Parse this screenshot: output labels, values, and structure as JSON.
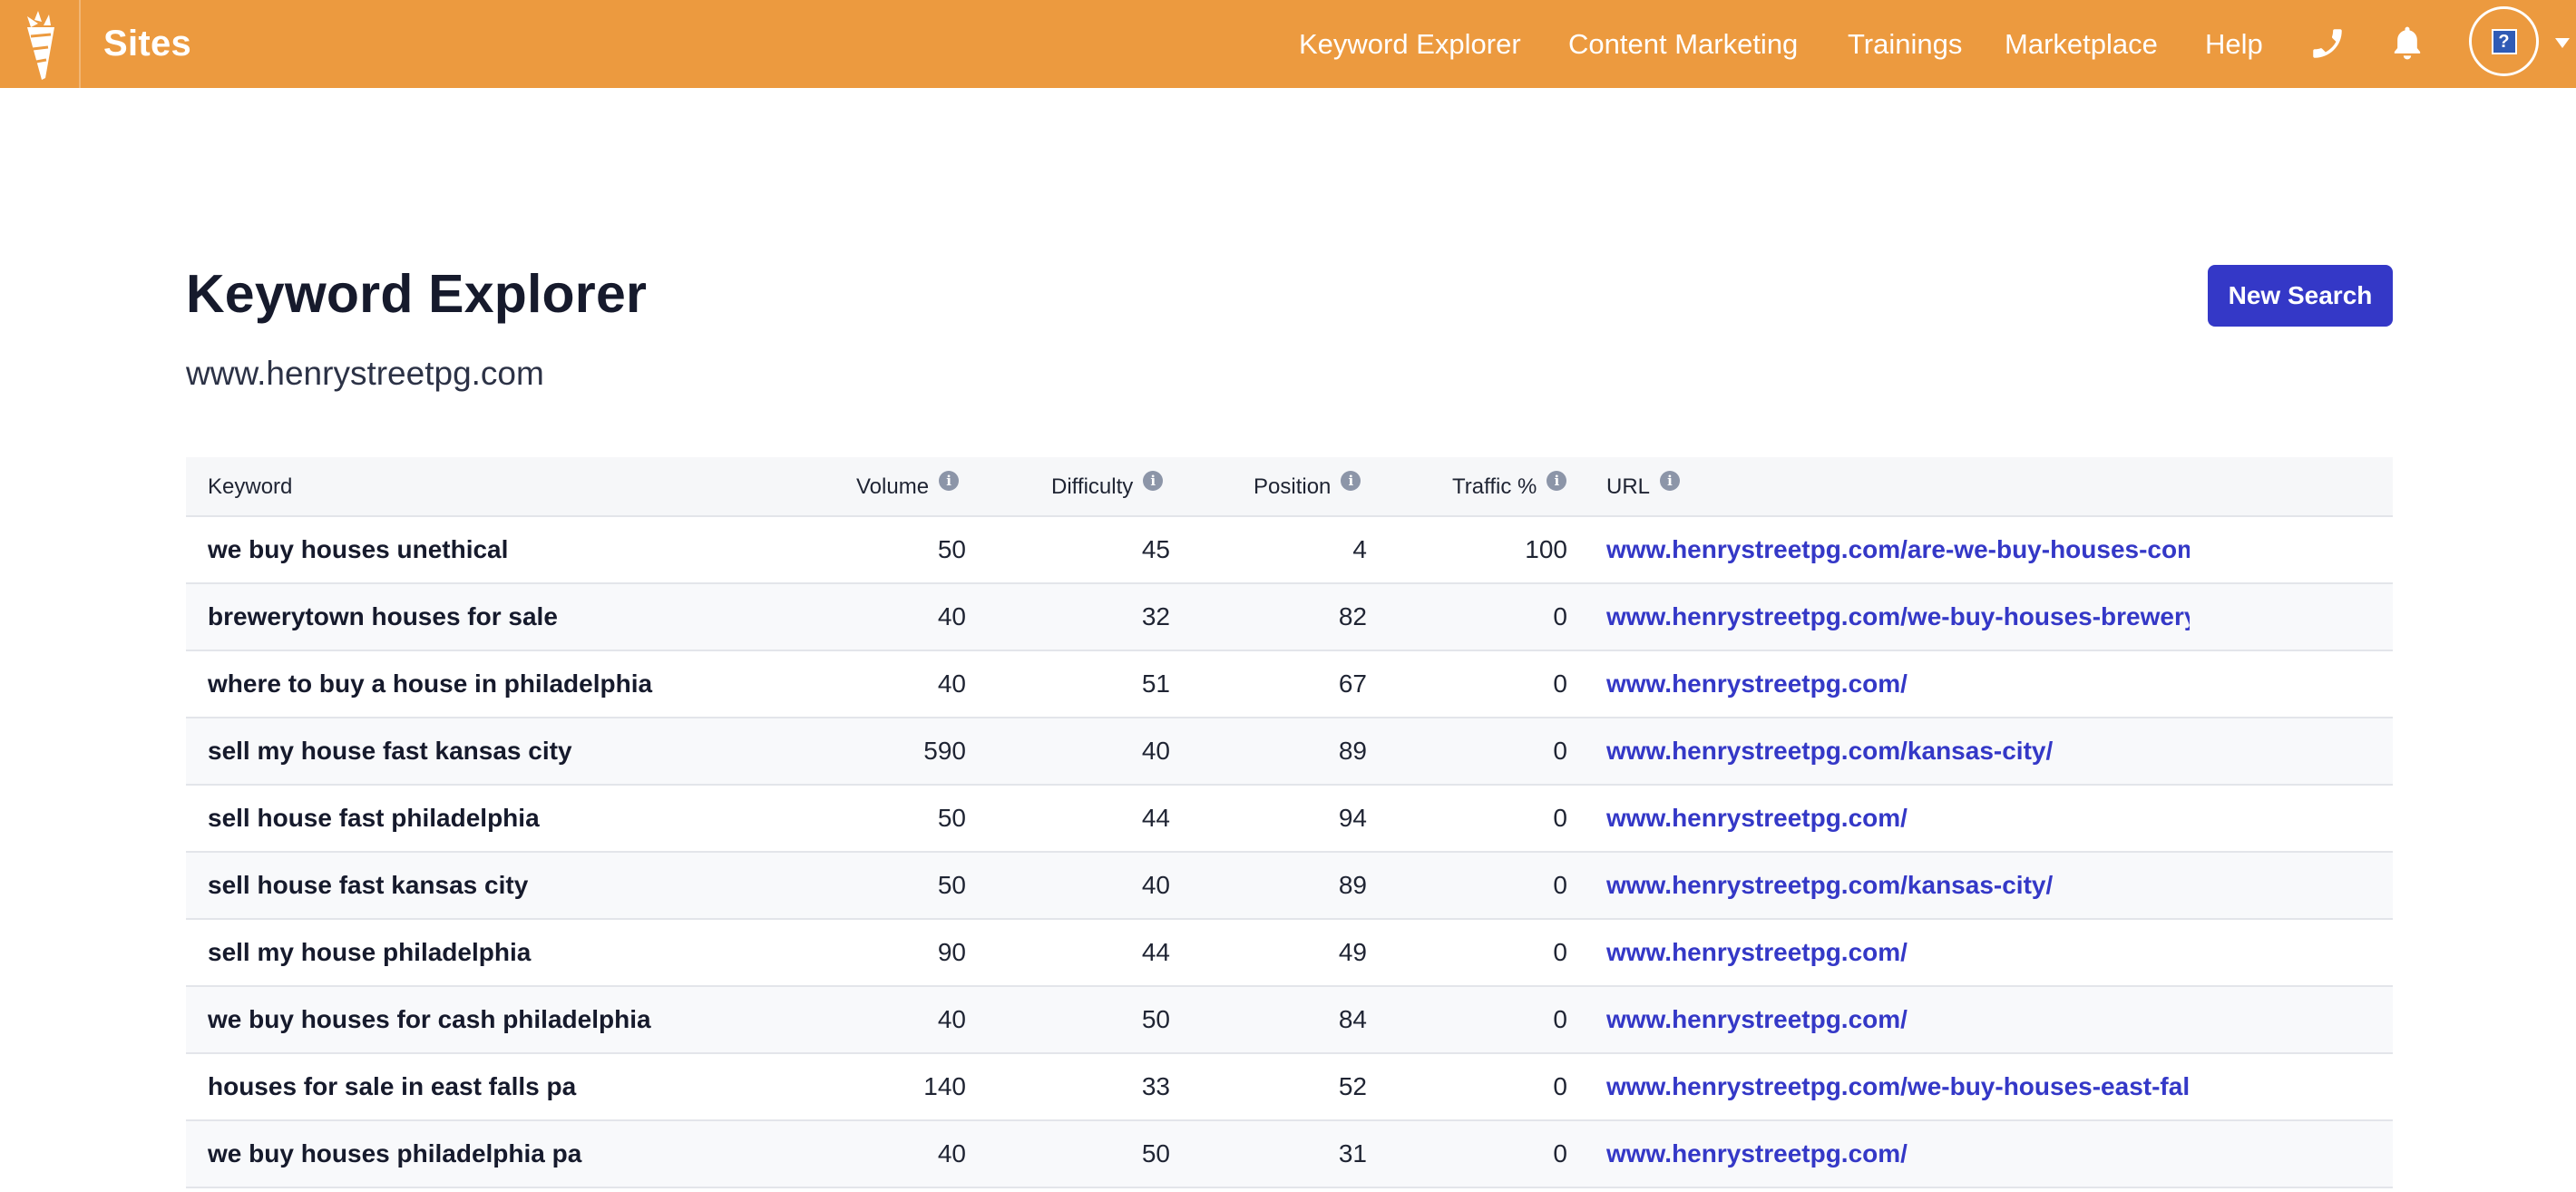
{
  "brand": "Sites",
  "nav": {
    "items": [
      "Keyword Explorer",
      "Content Marketing",
      "Trainings",
      "Marketplace",
      "Help"
    ],
    "icons": [
      "phone-icon",
      "bell-icon",
      "avatar",
      "chevron-down-icon"
    ],
    "avatar_glyph": "?"
  },
  "colors": {
    "topbar": "#ec9a3f",
    "primary": "#3438c7",
    "link": "#3438c7"
  },
  "page": {
    "title": "Keyword Explorer",
    "site": "www.henrystreetpg.com",
    "new_search_label": "New Search"
  },
  "table": {
    "headers": {
      "keyword": "Keyword",
      "volume": "Volume",
      "difficulty": "Difficulty",
      "position": "Position",
      "traffic": "Traffic %",
      "url": "URL"
    },
    "info_glyph": "i",
    "rows": [
      {
        "keyword": "we buy houses unethical",
        "volume": "50",
        "difficulty": "45",
        "position": "4",
        "traffic": "100",
        "url": "www.henrystreetpg.com/are-we-buy-houses-comp"
      },
      {
        "keyword": "brewerytown houses for sale",
        "volume": "40",
        "difficulty": "32",
        "position": "82",
        "traffic": "0",
        "url": "www.henrystreetpg.com/we-buy-houses-brewerytc"
      },
      {
        "keyword": "where to buy a house in philadelphia",
        "volume": "40",
        "difficulty": "51",
        "position": "67",
        "traffic": "0",
        "url": "www.henrystreetpg.com/"
      },
      {
        "keyword": "sell my house fast kansas city",
        "volume": "590",
        "difficulty": "40",
        "position": "89",
        "traffic": "0",
        "url": "www.henrystreetpg.com/kansas-city/"
      },
      {
        "keyword": "sell house fast philadelphia",
        "volume": "50",
        "difficulty": "44",
        "position": "94",
        "traffic": "0",
        "url": "www.henrystreetpg.com/"
      },
      {
        "keyword": "sell house fast kansas city",
        "volume": "50",
        "difficulty": "40",
        "position": "89",
        "traffic": "0",
        "url": "www.henrystreetpg.com/kansas-city/"
      },
      {
        "keyword": "sell my house philadelphia",
        "volume": "90",
        "difficulty": "44",
        "position": "49",
        "traffic": "0",
        "url": "www.henrystreetpg.com/"
      },
      {
        "keyword": "we buy houses for cash philadelphia",
        "volume": "40",
        "difficulty": "50",
        "position": "84",
        "traffic": "0",
        "url": "www.henrystreetpg.com/"
      },
      {
        "keyword": "houses for sale in east falls pa",
        "volume": "140",
        "difficulty": "33",
        "position": "52",
        "traffic": "0",
        "url": "www.henrystreetpg.com/we-buy-houses-east-falls-"
      },
      {
        "keyword": "we buy houses philadelphia pa",
        "volume": "40",
        "difficulty": "50",
        "position": "31",
        "traffic": "0",
        "url": "www.henrystreetpg.com/"
      }
    ]
  }
}
